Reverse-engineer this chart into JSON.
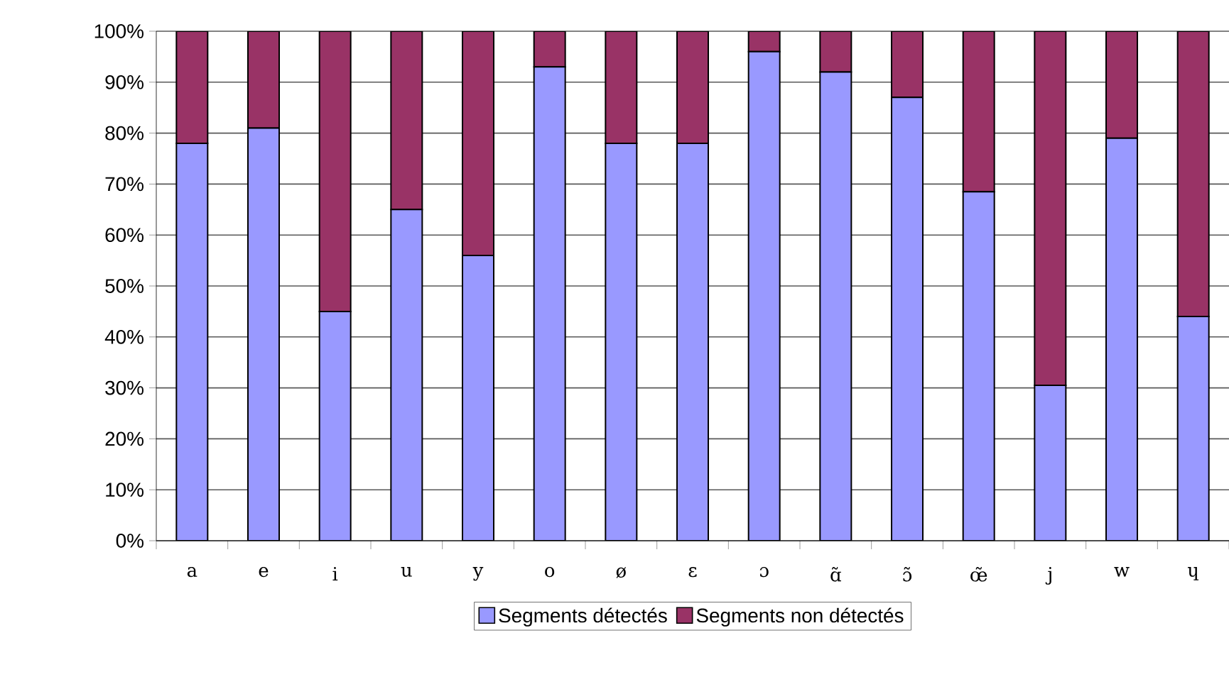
{
  "chart_data": {
    "type": "bar",
    "stacked": true,
    "categories": [
      "a",
      "e",
      "i",
      "u",
      "y",
      "o",
      "ø",
      "ɛ",
      "ɔ",
      "ɑ̃",
      "ɔ̃",
      "œ̃",
      "j",
      "w",
      "ɥ"
    ],
    "series": [
      {
        "name": "Segments détectés",
        "color": "#9999ff",
        "values": [
          78,
          81,
          45,
          65,
          56,
          93,
          78,
          78,
          96,
          92,
          87,
          68.5,
          30.5,
          79,
          44
        ]
      },
      {
        "name": "Segments non détectés",
        "color": "#993366",
        "values": [
          22,
          19,
          55,
          35,
          44,
          7,
          22,
          22,
          4,
          8,
          13,
          31.5,
          69.5,
          21,
          56
        ]
      }
    ],
    "ylim": [
      0,
      100
    ],
    "yticks": [
      {
        "value": 0,
        "label": "0%"
      },
      {
        "value": 10,
        "label": "10%"
      },
      {
        "value": 20,
        "label": "20%"
      },
      {
        "value": 30,
        "label": "30%"
      },
      {
        "value": 40,
        "label": "40%"
      },
      {
        "value": 50,
        "label": "50%"
      },
      {
        "value": 60,
        "label": "60%"
      },
      {
        "value": 70,
        "label": "70%"
      },
      {
        "value": 80,
        "label": "80%"
      },
      {
        "value": 90,
        "label": "90%"
      },
      {
        "value": 100,
        "label": "100%"
      }
    ],
    "grid": "y",
    "legend": "bottom"
  }
}
